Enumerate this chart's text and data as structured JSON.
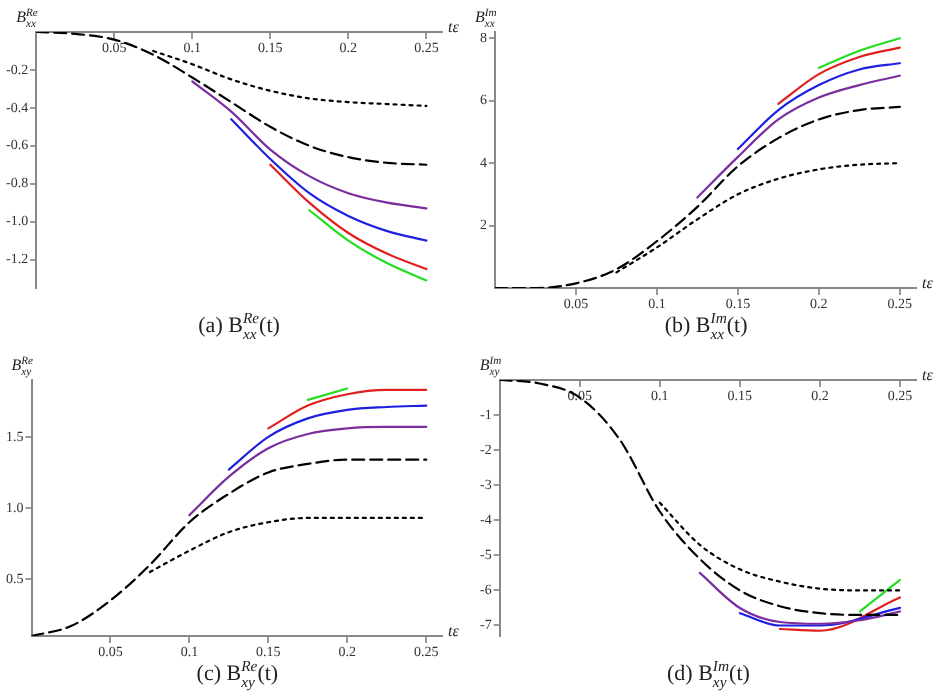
{
  "chart_data": [
    {
      "type": "line",
      "title": "(a) B$_{xx}$$^{Re}$(t)",
      "ylabel": "B$_{xx}$$^{Re}$",
      "xlabel": "tε",
      "x": [
        0,
        0.025,
        0.05,
        0.075,
        0.1,
        0.125,
        0.15,
        0.175,
        0.2,
        0.225,
        0.25
      ],
      "series": [
        {
          "color": "#000000",
          "line_style": "dotted",
          "values": [
            null,
            null,
            null,
            -0.1,
            -0.17,
            -0.25,
            -0.31,
            -0.35,
            -0.37,
            -0.38,
            -0.39
          ]
        },
        {
          "color": "#000000",
          "line_style": "dashed",
          "values": [
            0,
            -0.01,
            -0.04,
            -0.12,
            -0.24,
            -0.37,
            -0.5,
            -0.6,
            -0.66,
            -0.69,
            -0.7
          ]
        },
        {
          "color": "#7b2d9e",
          "values": [
            null,
            null,
            null,
            null,
            -0.26,
            -0.42,
            -0.62,
            -0.76,
            -0.85,
            -0.9,
            -0.93
          ]
        },
        {
          "color": "#1f1fe0",
          "values": [
            null,
            null,
            null,
            null,
            null,
            -0.46,
            -0.67,
            -0.85,
            -0.97,
            -1.05,
            -1.1
          ]
        },
        {
          "color": "#e01f1f",
          "values": [
            null,
            null,
            null,
            null,
            null,
            null,
            -0.7,
            -0.9,
            -1.06,
            -1.17,
            -1.25
          ]
        },
        {
          "color": "#22dd22",
          "values": [
            null,
            null,
            null,
            null,
            null,
            null,
            null,
            -0.94,
            -1.1,
            -1.22,
            -1.31
          ]
        }
      ],
      "xlim": [
        0,
        0.26
      ],
      "ylim": [
        -1.35,
        0
      ],
      "xticks": [
        0.05,
        0.1,
        0.15,
        0.2,
        0.25
      ],
      "yticks": [
        -0.2,
        -0.4,
        -0.6,
        -0.8,
        {
          "value": -1,
          "label": "-1.0"
        },
        -1.2
      ],
      "grid": false,
      "legend": false
    },
    {
      "type": "line",
      "title": "(b) B$_{xx}$$^{Im}$(t)",
      "ylabel": "B$_{xx}$$^{Im}$",
      "xlabel": "tε",
      "x": [
        0,
        0.025,
        0.05,
        0.075,
        0.1,
        0.125,
        0.15,
        0.175,
        0.2,
        0.225,
        0.25
      ],
      "series": [
        {
          "color": "#000000",
          "line_style": "dotted",
          "values": [
            null,
            null,
            null,
            0.5,
            1.3,
            2.2,
            3.0,
            3.5,
            3.8,
            3.95,
            4.0
          ]
        },
        {
          "color": "#000000",
          "line_style": "dashed",
          "values": [
            0,
            0,
            0.15,
            0.6,
            1.5,
            2.6,
            3.9,
            4.8,
            5.4,
            5.7,
            5.8
          ]
        },
        {
          "color": "#7b2d9e",
          "values": [
            null,
            null,
            null,
            null,
            null,
            2.9,
            4.2,
            5.4,
            6.1,
            6.5,
            6.8
          ]
        },
        {
          "color": "#1f1fe0",
          "values": [
            null,
            null,
            null,
            null,
            null,
            null,
            4.45,
            5.7,
            6.5,
            7.0,
            7.2
          ]
        },
        {
          "color": "#e01f1f",
          "values": [
            null,
            null,
            null,
            null,
            null,
            null,
            null,
            5.9,
            6.85,
            7.4,
            7.7
          ]
        },
        {
          "color": "#22dd22",
          "values": [
            null,
            null,
            null,
            null,
            null,
            null,
            null,
            null,
            7.05,
            7.6,
            8.0
          ]
        }
      ],
      "xlim": [
        0,
        0.26
      ],
      "ylim": [
        0,
        8.2
      ],
      "xticks": [
        0.05,
        0.1,
        0.15,
        0.2,
        0.25
      ],
      "yticks": [
        2,
        4,
        6,
        8
      ],
      "grid": false,
      "legend": false
    },
    {
      "type": "line",
      "title": "(c) B$_{xy}$$^{Re}$(t)",
      "ylabel": "B$_{xy}$$^{Re}$",
      "xlabel": "tε",
      "x": [
        0,
        0.025,
        0.05,
        0.075,
        0.1,
        0.125,
        0.15,
        0.175,
        0.2,
        0.225,
        0.25
      ],
      "series": [
        {
          "color": "#000000",
          "line_style": "dotted",
          "values": [
            null,
            null,
            null,
            0.55,
            0.7,
            0.83,
            0.9,
            0.93,
            0.93,
            0.93,
            0.93
          ]
        },
        {
          "color": "#000000",
          "line_style": "dashed",
          "values": [
            0.1,
            0.17,
            0.35,
            0.6,
            0.9,
            1.1,
            1.25,
            1.31,
            1.34,
            1.34,
            1.34
          ]
        },
        {
          "color": "#7b2d9e",
          "values": [
            null,
            null,
            null,
            null,
            0.95,
            1.22,
            1.42,
            1.52,
            1.56,
            1.57,
            1.57
          ]
        },
        {
          "color": "#1f1fe0",
          "values": [
            null,
            null,
            null,
            null,
            null,
            1.27,
            1.5,
            1.63,
            1.69,
            1.71,
            1.72
          ]
        },
        {
          "color": "#e01f1f",
          "values": [
            null,
            null,
            null,
            null,
            null,
            null,
            1.56,
            1.72,
            1.8,
            1.83,
            1.83
          ]
        },
        {
          "color": "#22dd22",
          "values": [
            null,
            null,
            null,
            null,
            null,
            null,
            null,
            1.76,
            1.84,
            null,
            null
          ]
        }
      ],
      "xlim": [
        0,
        0.26
      ],
      "ylim": [
        0.1,
        1.9
      ],
      "xticks": [
        0.05,
        0.1,
        0.15,
        0.2,
        0.25
      ],
      "yticks": [
        0.5,
        {
          "value": 1,
          "label": "1.0"
        },
        1.5
      ],
      "grid": false,
      "legend": false
    },
    {
      "type": "line",
      "title": "(d) B$_{xy}$$^{Im}$(t)",
      "ylabel": "B$_{xy}$$^{Im}$",
      "xlabel": "tε",
      "x": [
        0,
        0.025,
        0.05,
        0.075,
        0.1,
        0.125,
        0.15,
        0.175,
        0.2,
        0.225,
        0.25
      ],
      "series": [
        {
          "color": "#000000",
          "line_style": "dotted",
          "values": [
            null,
            null,
            null,
            null,
            -3.5,
            -4.7,
            -5.4,
            -5.75,
            -5.95,
            -6.0,
            -6.0
          ]
        },
        {
          "color": "#000000",
          "line_style": "dashed",
          "values": [
            0,
            -0.1,
            -0.5,
            -1.7,
            -3.75,
            -5.1,
            -6.0,
            -6.45,
            -6.65,
            -6.7,
            -6.7
          ]
        },
        {
          "color": "#7b2d9e",
          "values": [
            null,
            null,
            null,
            null,
            null,
            -5.5,
            -6.5,
            -6.9,
            -6.95,
            -6.85,
            -6.6
          ]
        },
        {
          "color": "#1f1fe0",
          "values": [
            null,
            null,
            null,
            null,
            null,
            null,
            -6.65,
            -7.0,
            -7.0,
            null,
            -6.5
          ]
        },
        {
          "color": "#e01f1f",
          "values": [
            null,
            null,
            null,
            null,
            null,
            null,
            null,
            -7.1,
            -7.15,
            null,
            -6.2
          ]
        },
        {
          "color": "#22dd22",
          "values": [
            null,
            null,
            null,
            null,
            null,
            null,
            null,
            null,
            null,
            -6.6,
            -5.7
          ]
        }
      ],
      "xlim": [
        0,
        0.26
      ],
      "ylim": [
        -7.3,
        0
      ],
      "xticks": [
        0.05,
        0.1,
        0.15,
        0.2,
        0.25
      ],
      "yticks": [
        -1,
        -2,
        -3,
        -4,
        -5,
        -6,
        -7
      ],
      "grid": false,
      "legend": false
    }
  ]
}
